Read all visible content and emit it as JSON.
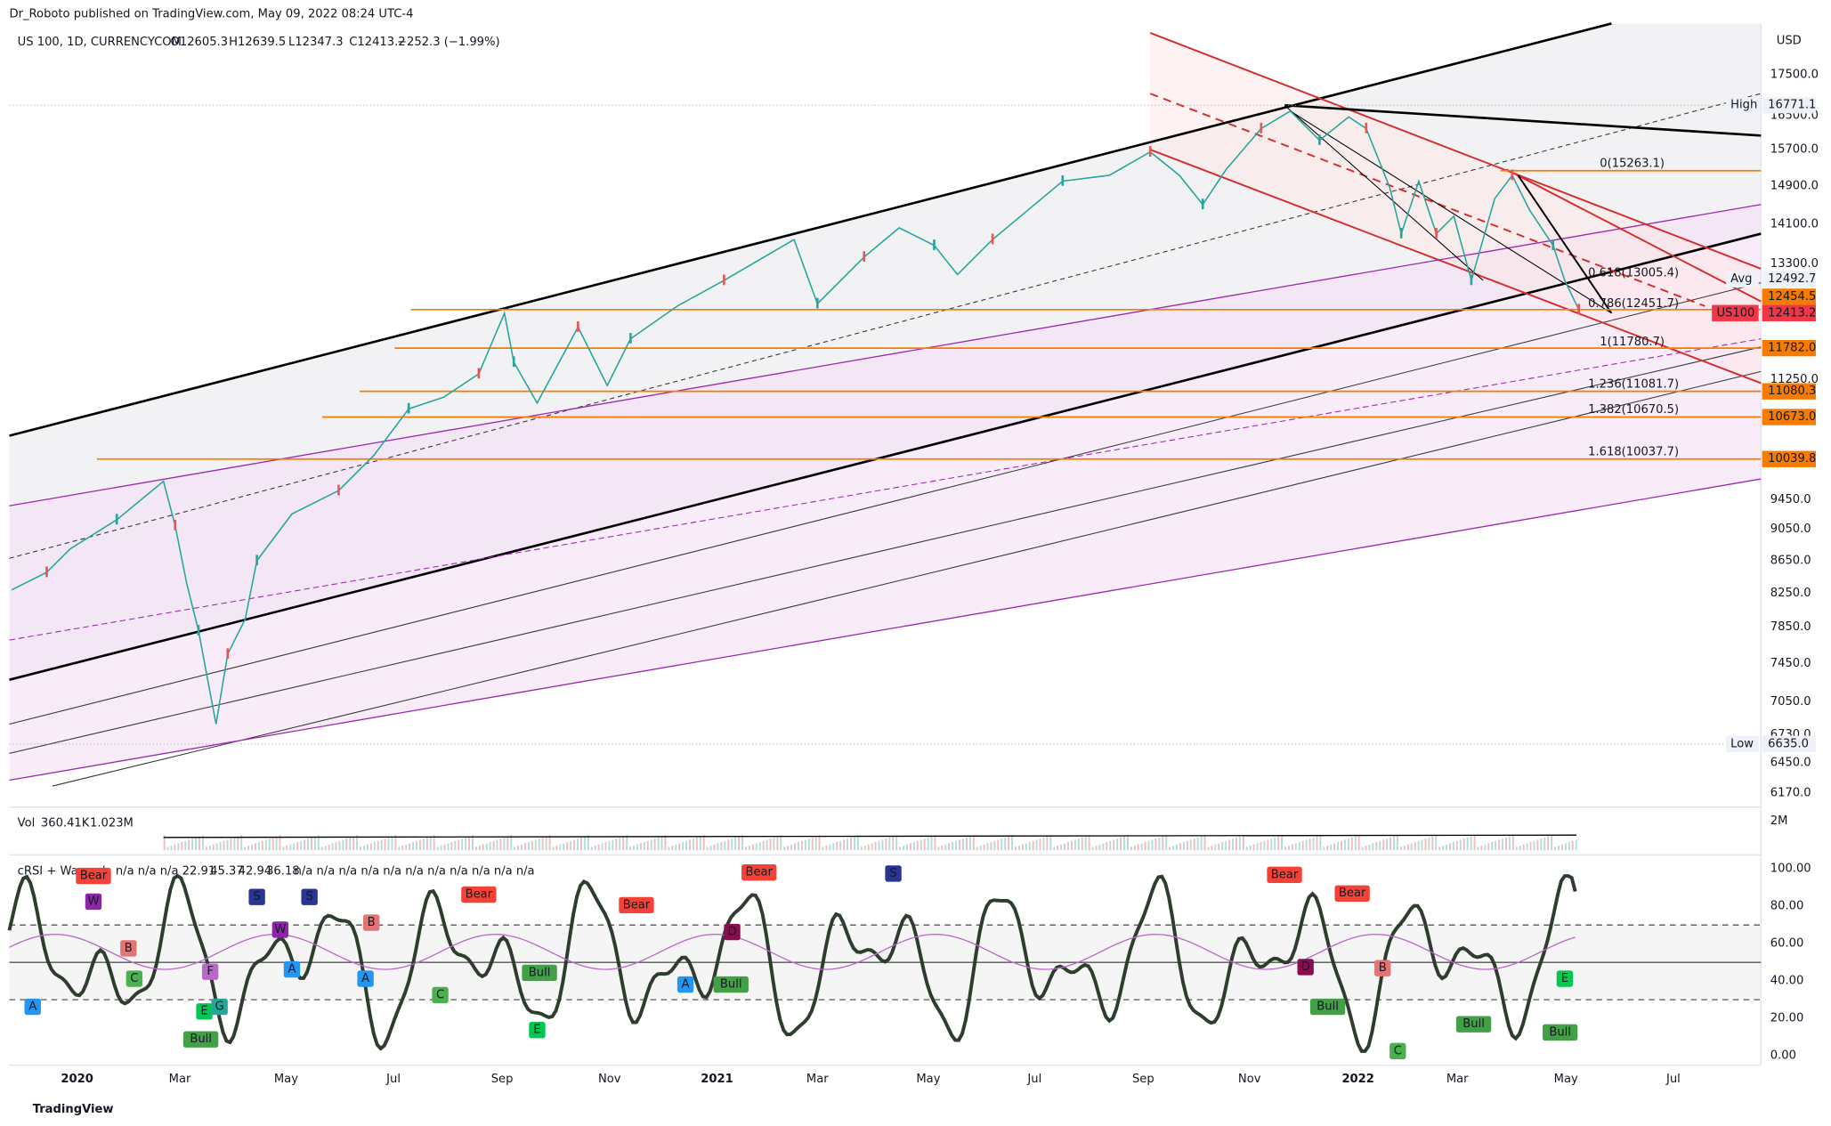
{
  "header": {
    "publisher": "Dr_Roboto published on TradingView.com, May 09, 2022 08:24 UTC-4"
  },
  "symbol_line": {
    "symbol": "US 100, 1D, CURRENCYCOM",
    "open": "O12605.3",
    "high": "H12639.5",
    "low": "L12347.3",
    "close": "C12413.2",
    "change": "−252.3 (−1.99%)"
  },
  "currency": "USD",
  "price_axis": [
    "17500.0",
    "16500.0",
    "15700.0",
    "14900.0",
    "14100.0",
    "13300.0",
    "11250.0",
    "9450.0",
    "9050.0",
    "8650.0",
    "8250.0",
    "7850.0",
    "7450.0",
    "7050.0",
    "6730.0",
    "6450.0",
    "6170.0"
  ],
  "price_tags": [
    {
      "name": "High",
      "value": "16771.1"
    },
    {
      "name": "Avg",
      "value": "12492.7"
    },
    {
      "value": "12454.5"
    },
    {
      "name": "US100",
      "value": "12413.2"
    },
    {
      "value": "11782.0"
    },
    {
      "value": "11080.3"
    },
    {
      "value": "10673.0"
    },
    {
      "value": "10039.8"
    },
    {
      "name": "Low",
      "value": "6635.0"
    }
  ],
  "fib_levels": [
    "0(15263.1)",
    "0.618(13005.4)",
    "0.786(12451.7)",
    "1(11780.7)",
    "1.236(11081.7)",
    "1.382(10670.5)",
    "1.618(10037.7)"
  ],
  "volume": {
    "label": "Vol",
    "value": "360.41K",
    "ma": "1.023M",
    "axis": "2M"
  },
  "crsi": {
    "label": "cRSI + Wa",
    "values": [
      "n/a",
      "n/a",
      "n/a",
      "n/a",
      "22.91",
      "45.37",
      "42.94",
      "36.18",
      "n/a",
      "n/a",
      "n/a",
      "n/a",
      "n/a",
      "n/a",
      "n/a",
      "n/a",
      "n/a",
      "n/a",
      "n/a"
    ]
  },
  "crsi_axis": [
    "100.00",
    "80.00",
    "60.00",
    "40.00",
    "20.00",
    "0.00"
  ],
  "time_axis": [
    "2020",
    "Mar",
    "May",
    "Jul",
    "Sep",
    "Nov",
    "2021",
    "Mar",
    "May",
    "Jul",
    "Sep",
    "Nov",
    "2022",
    "Mar",
    "May",
    "Jul"
  ],
  "markers": [
    "Bear",
    "W",
    "S",
    "B",
    "C",
    "A",
    "F",
    "E",
    "G",
    "Bull",
    "A",
    "W",
    "S",
    "Bear",
    "B",
    "A",
    "C",
    "Bear",
    "Bull",
    "E",
    "D",
    "Bear",
    "Bull",
    "S",
    "A",
    "Bear",
    "Bull",
    "C",
    "B",
    "Bear",
    "Bull",
    "D",
    "E",
    "Bull"
  ],
  "footer": "TradingView"
}
